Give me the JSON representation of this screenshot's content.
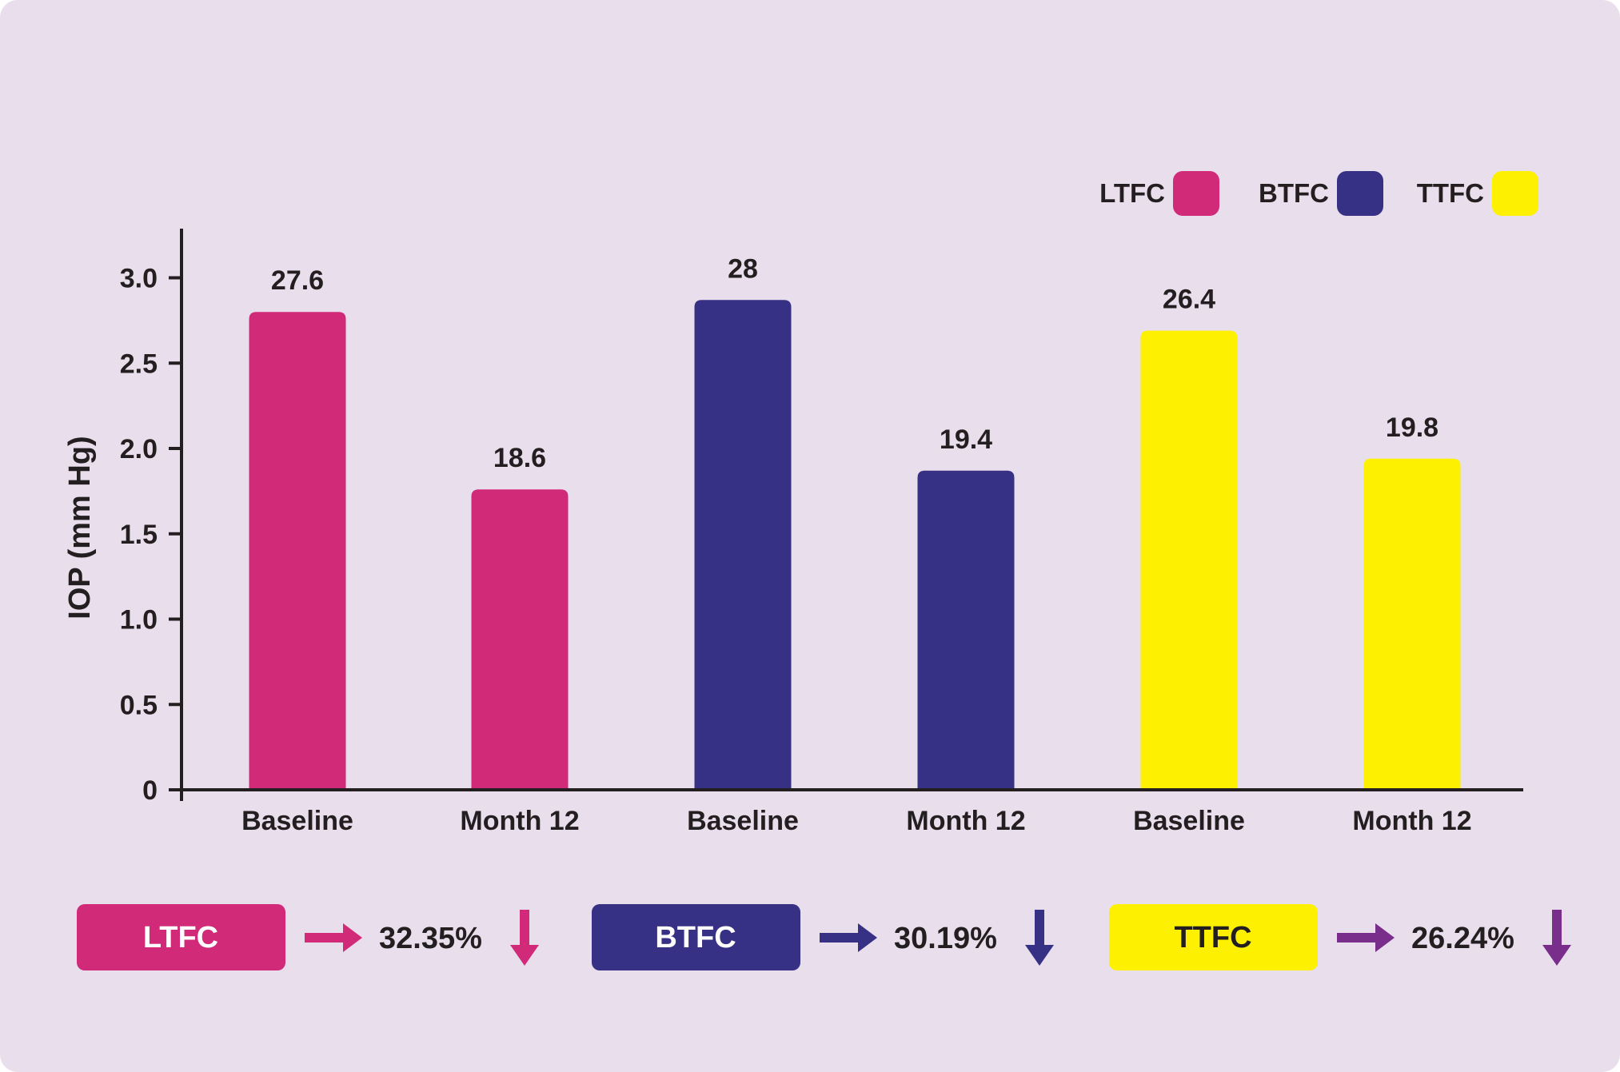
{
  "colors": {
    "background": "#e8deec",
    "LTFC": "#d12a78",
    "BTFC": "#363184",
    "TTFC": "#fdf000",
    "ttfc_arrow": "#7a2e8c",
    "axis": "#231f20"
  },
  "chart_data": {
    "type": "bar",
    "title": "",
    "xlabel": "",
    "ylabel": "IOP (mm Hg)",
    "ylim": [
      0,
      3.3
    ],
    "yticks": [
      "0",
      "0.5",
      "1.0",
      "1.5",
      "2.0",
      "2.5",
      "3.0"
    ],
    "categories": [
      "Baseline",
      "Month 12",
      "Baseline",
      "Month 12",
      "Baseline",
      "Month 12"
    ],
    "bars": [
      {
        "group": "LTFC",
        "category": "Baseline",
        "value": 2.8,
        "label": "27.6"
      },
      {
        "group": "LTFC",
        "category": "Month 12",
        "value": 1.76,
        "label": "18.6"
      },
      {
        "group": "BTFC",
        "category": "Baseline",
        "value": 2.87,
        "label": "28"
      },
      {
        "group": "BTFC",
        "category": "Month 12",
        "value": 1.87,
        "label": "19.4"
      },
      {
        "group": "TTFC",
        "category": "Baseline",
        "value": 2.69,
        "label": "26.4"
      },
      {
        "group": "TTFC",
        "category": "Month 12",
        "value": 1.94,
        "label": "19.8"
      }
    ],
    "legend": {
      "position": "top-right",
      "items": [
        {
          "name": "LTFC",
          "color": "#d12a78"
        },
        {
          "name": "BTFC",
          "color": "#363184"
        },
        {
          "name": "TTFC",
          "color": "#fdf000"
        }
      ]
    },
    "grid": false
  },
  "summary": [
    {
      "name": "LTFC",
      "color": "#d12a78",
      "text_color": "#ffffff",
      "arrow_color": "#d12a78",
      "percent": "32.35%"
    },
    {
      "name": "BTFC",
      "color": "#363184",
      "text_color": "#ffffff",
      "arrow_color": "#363184",
      "percent": "30.19%"
    },
    {
      "name": "TTFC",
      "color": "#fdf000",
      "text_color": "#231f20",
      "arrow_color": "#7a2e8c",
      "percent": "26.24%"
    }
  ]
}
